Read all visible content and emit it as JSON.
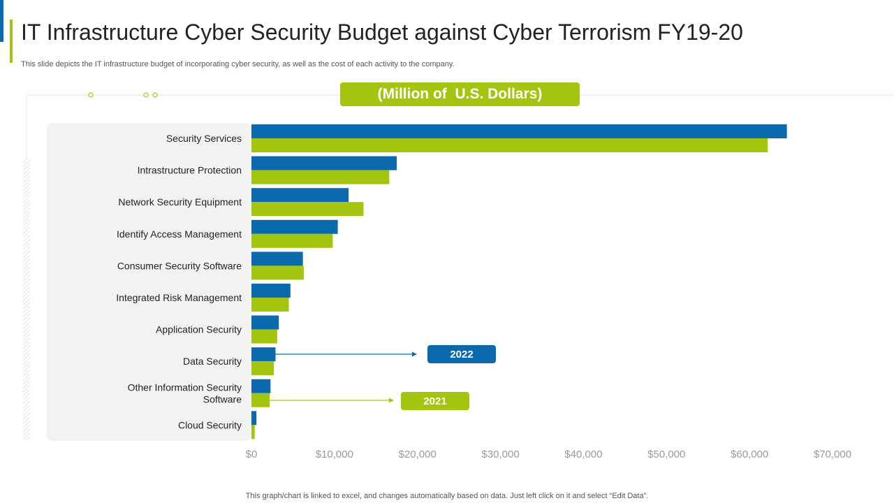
{
  "slide": {
    "title": "IT Infrastructure Cyber Security Budget against Cyber Terrorism FY19-20",
    "subtitle": "This slide depicts the IT infrastructure budget of incorporating cyber security, as well as the cost of each activity to the company.",
    "footer": "This graph/chart is linked to excel,  and changes automatically based on data. Just left click on it and select “Edit Data”."
  },
  "colors": {
    "series_2022": "#0b6aad",
    "series_2021": "#a4c50f"
  },
  "chart_data": {
    "type": "bar",
    "orientation": "horizontal",
    "unit_label": "(Million of  U.S. Dollars)",
    "categories": [
      [
        "Security Services"
      ],
      [
        "Intrastructure Protection"
      ],
      [
        "Network Security Equipment"
      ],
      [
        "Identify Access Management"
      ],
      [
        "Consumer Security Software"
      ],
      [
        "Integrated Risk Management"
      ],
      [
        "Application Security"
      ],
      [
        "Data Security"
      ],
      [
        "Other Information Security",
        "Software"
      ],
      [
        "Cloud Security"
      ]
    ],
    "series": [
      {
        "name": "2022",
        "color": "#0b6aad",
        "values": [
          64500,
          17500,
          11700,
          10400,
          6200,
          4700,
          3300,
          2900,
          2300,
          600
        ]
      },
      {
        "name": "2021",
        "color": "#a4c50f",
        "values": [
          62200,
          16600,
          13500,
          9800,
          6300,
          4500,
          3100,
          2700,
          2200,
          400
        ]
      }
    ],
    "xlim": [
      0,
      70000
    ],
    "xticks": [
      "$0",
      "$10,000",
      "$20,000",
      "$30,000",
      "$40,000",
      "$50,000",
      "$60,000",
      "$70,000"
    ],
    "grid": false,
    "legend": "callouts"
  }
}
